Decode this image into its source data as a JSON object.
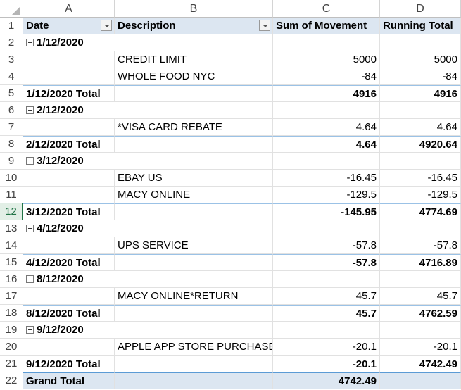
{
  "column_letters": [
    "A",
    "B",
    "C",
    "D"
  ],
  "row_numbers": [
    1,
    2,
    3,
    4,
    5,
    6,
    7,
    8,
    9,
    10,
    11,
    12,
    13,
    14,
    15,
    16,
    17,
    18,
    19,
    20,
    21,
    22
  ],
  "table": {
    "header": [
      "Date",
      "Description",
      "Sum of Movement",
      "Running Total"
    ],
    "rows": [
      [
        "1/12/2020",
        null,
        null,
        null
      ],
      [
        null,
        "CREDIT LIMIT",
        "5000",
        "5000"
      ],
      [
        null,
        "WHOLE FOOD NYC",
        "-84",
        "-84"
      ],
      [
        "1/12/2020 Total",
        null,
        "4916",
        "4916"
      ],
      [
        "2/12/2020",
        null,
        null,
        null
      ],
      [
        null,
        "*VISA CARD REBATE",
        "4.64",
        "4.64"
      ],
      [
        "2/12/2020 Total",
        null,
        "4.64",
        "4920.64"
      ],
      [
        "3/12/2020",
        null,
        null,
        null
      ],
      [
        null,
        "EBAY US",
        "-16.45",
        "-16.45"
      ],
      [
        null,
        "MACY ONLINE",
        "-129.5",
        "-129.5"
      ],
      [
        "3/12/2020 Total",
        null,
        "-145.95",
        "4774.69"
      ],
      [
        "4/12/2020",
        null,
        null,
        null
      ],
      [
        null,
        "UPS SERVICE",
        "-57.8",
        "-57.8"
      ],
      [
        "4/12/2020 Total",
        null,
        "-57.8",
        "4716.89"
      ],
      [
        "8/12/2020",
        null,
        null,
        null
      ],
      [
        null,
        "MACY ONLINE*RETURN",
        "45.7",
        "45.7"
      ],
      [
        "8/12/2020 Total",
        null,
        "45.7",
        "4762.59"
      ],
      [
        "9/12/2020",
        null,
        null,
        null
      ],
      [
        null,
        "APPLE APP STORE PURCHASE",
        "-20.1",
        "-20.1"
      ],
      [
        "9/12/2020 Total",
        null,
        "-20.1",
        "4742.49"
      ],
      [
        "Grand Total",
        null,
        "4742.49",
        null
      ]
    ]
  }
}
